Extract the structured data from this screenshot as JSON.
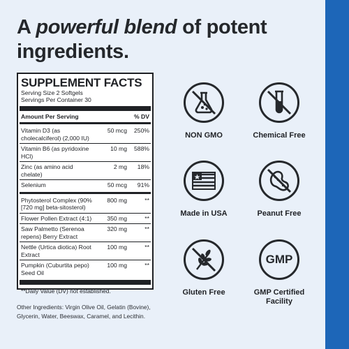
{
  "headline": {
    "part1": "A ",
    "emphasis": "powerful blend",
    "part2": " of potent ingredients."
  },
  "facts": {
    "title": "SUPPLEMENT FACTS",
    "serving_size": "Serving Size 2 Softgels",
    "servings_per_container": "Servings Per Container 30",
    "header_amount": "Amount Per Serving",
    "header_dv": "% DV",
    "rows": [
      {
        "name": "Vitamin D3 (as cholecalciferol) (2,000 IU)",
        "amount": "50 mcg",
        "dv": "250%"
      },
      {
        "name": "Vitamin B6 (as pyridoxine HCl)",
        "amount": "10 mg",
        "dv": "588%"
      },
      {
        "name": "Zinc (as amino acid chelate)",
        "amount": "2 mg",
        "dv": "18%"
      },
      {
        "name": "Selenium",
        "amount": "50 mcg",
        "dv": "91%"
      },
      {
        "name": "Phytosterol Complex (90% [720 mg] beta-sitosterol)",
        "amount": "800 mg",
        "dv": "**"
      },
      {
        "name": "Flower Pollen Extract (4:1)",
        "amount": "350 mg",
        "dv": "**"
      },
      {
        "name": "Saw Palmetto (Serenoa repens) Berry Extract",
        "amount": "320 mg",
        "dv": "**"
      },
      {
        "name": "Nettle (Urtica diotica) Root Extract",
        "amount": "100 mg",
        "dv": "**"
      },
      {
        "name": "Pumpkin (Cuburtita pepo) Seed Oil",
        "amount": "100 mg",
        "dv": "**"
      }
    ],
    "footnote": "**Daily Value (DV) not established."
  },
  "other_ingredients": "Other Ingredients: Virgin Olive Oil, Gelatin (Bovine), Glycerin, Water, Beeswax, Caramel, and Lecithin.",
  "badges": [
    {
      "icon": "flask-crossed-icon",
      "label": "NON GMO"
    },
    {
      "icon": "test-tube-crossed-icon",
      "label": "Chemical Free"
    },
    {
      "icon": "us-flag-icon",
      "label": "Made in USA"
    },
    {
      "icon": "peanut-crossed-icon",
      "label": "Peanut Free"
    },
    {
      "icon": "wheat-crossed-icon",
      "label": "Gluten Free"
    },
    {
      "icon": "gmp-icon",
      "label": "GMP Certified Facility",
      "icon_text": "GMP"
    }
  ],
  "colors": {
    "background": "#e9f0f9",
    "accent": "#1d66b8",
    "ink": "#1f2125"
  }
}
